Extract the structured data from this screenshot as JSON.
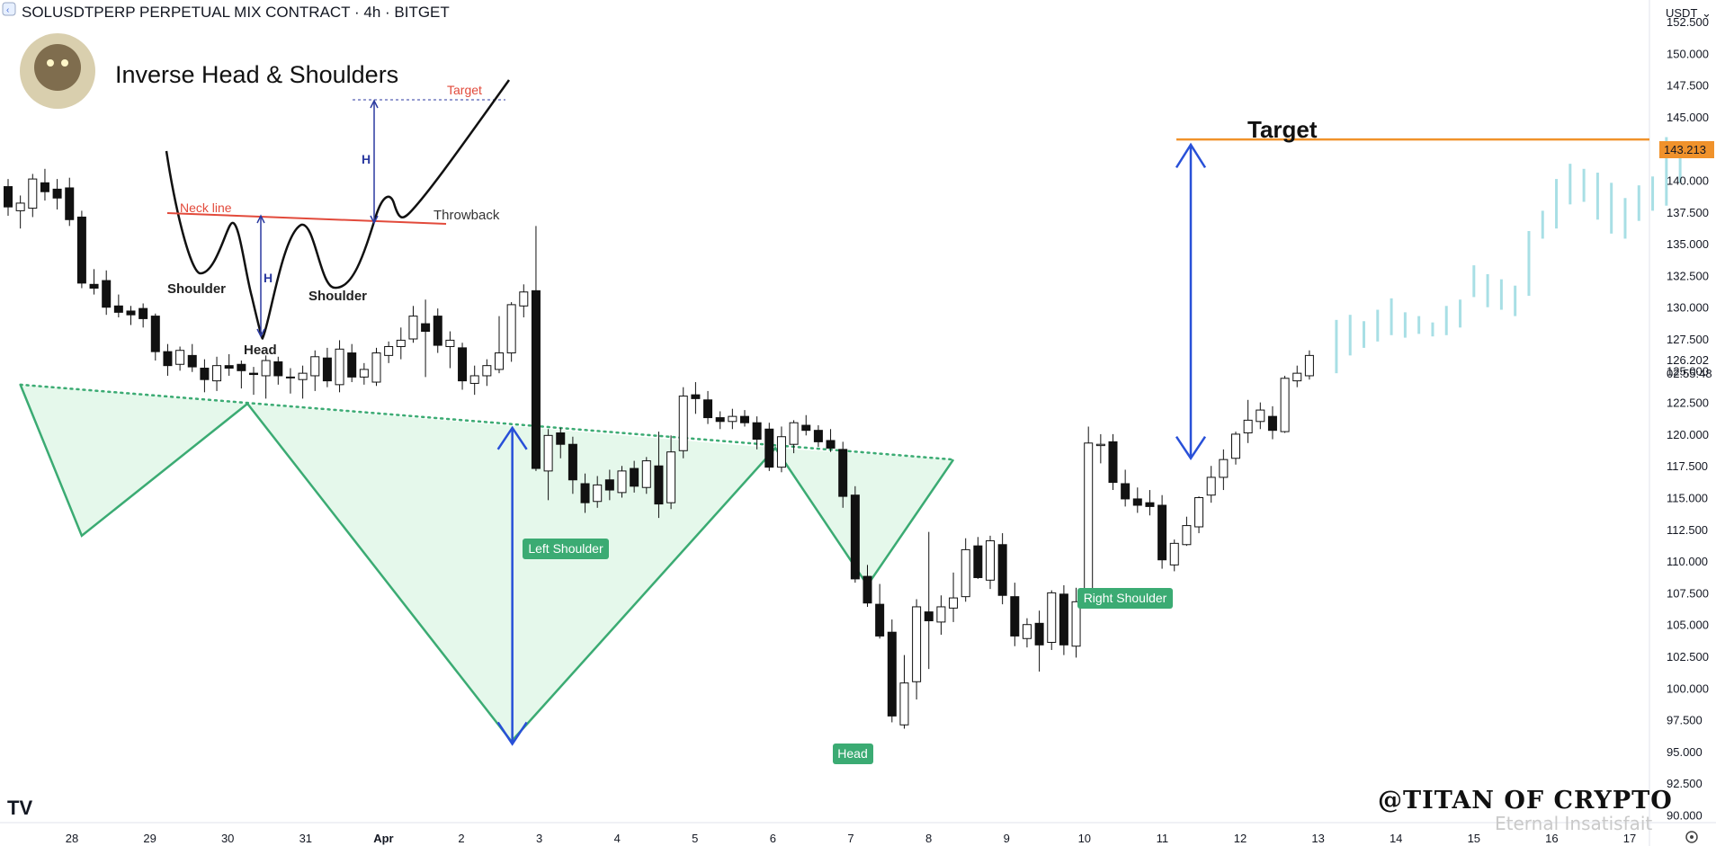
{
  "header": {
    "symbol_line": "SOLUSDTPERP PERPETUAL MIX CONTRACT · 4h · BITGET",
    "currency": "USDT"
  },
  "schematic": {
    "title": "Inverse Head & Shoulders",
    "neck_line": "Neck line",
    "throwback": "Throwback",
    "target": "Target",
    "h1": "H",
    "h2": "H",
    "shoulder_left": "Shoulder",
    "shoulder_right": "Shoulder",
    "head": "Head"
  },
  "annotations": {
    "target_title": "Target",
    "left_shoulder": "Left Shoulder",
    "head": "Head",
    "right_shoulder": "Right Shoulder",
    "watermark": "@TITAN OF CRYPTO",
    "watermark2": "Eternal Insatisfait"
  },
  "price_labels": {
    "target_price": "143.213",
    "last_price": "126.202",
    "countdown": "02:55:48"
  },
  "colors": {
    "bull_fill": "#ffffff",
    "bear_fill": "#111111",
    "candle_stroke": "#111111",
    "pattern_green": "#3bab73",
    "pattern_fill": "#dcf6e4",
    "target_orange": "#f0922b",
    "arrow_blue": "#2850d8",
    "projection": "#a8dfe5",
    "neck_red": "#e24a3b"
  },
  "chart_data": {
    "type": "candlestick",
    "timeframe": "4h",
    "x_ticks": [
      "28",
      "29",
      "30",
      "31",
      "Apr",
      "2",
      "3",
      "4",
      "5",
      "6",
      "7",
      "8",
      "9",
      "10",
      "11",
      "12",
      "13",
      "14",
      "15",
      "16",
      "17"
    ],
    "y_ticks": [
      "152.500",
      "150.000",
      "147.500",
      "145.000",
      "142.500",
      "140.000",
      "137.500",
      "135.000",
      "132.500",
      "130.000",
      "127.500",
      "125.000",
      "122.500",
      "120.000",
      "117.500",
      "115.000",
      "112.500",
      "110.000",
      "107.500",
      "105.000",
      "102.500",
      "100.000",
      "97.500",
      "95.000",
      "92.500",
      "90.000"
    ],
    "ylim": [
      89.4,
      154.2
    ],
    "target_price": 143.213,
    "last_price": 126.202,
    "candles": [
      {
        "o": 139.5,
        "h": 140.1,
        "l": 137.2,
        "c": 137.9
      },
      {
        "o": 137.6,
        "h": 138.8,
        "l": 136.2,
        "c": 138.2
      },
      {
        "o": 137.8,
        "h": 140.5,
        "l": 137.1,
        "c": 140.1
      },
      {
        "o": 139.8,
        "h": 140.9,
        "l": 138.4,
        "c": 139.1
      },
      {
        "o": 139.3,
        "h": 140.1,
        "l": 137.7,
        "c": 138.6
      },
      {
        "o": 139.4,
        "h": 140.2,
        "l": 136.4,
        "c": 136.9
      },
      {
        "o": 137.1,
        "h": 137.6,
        "l": 131.5,
        "c": 131.9
      },
      {
        "o": 131.8,
        "h": 133.0,
        "l": 131.0,
        "c": 131.5
      },
      {
        "o": 132.1,
        "h": 132.9,
        "l": 129.4,
        "c": 130.0
      },
      {
        "o": 130.1,
        "h": 131.0,
        "l": 129.2,
        "c": 129.6
      },
      {
        "o": 129.7,
        "h": 130.1,
        "l": 128.6,
        "c": 129.4
      },
      {
        "o": 129.9,
        "h": 130.3,
        "l": 128.4,
        "c": 129.1
      },
      {
        "o": 129.3,
        "h": 129.5,
        "l": 125.8,
        "c": 126.5
      },
      {
        "o": 126.5,
        "h": 127.1,
        "l": 124.6,
        "c": 125.4
      },
      {
        "o": 125.5,
        "h": 126.9,
        "l": 125.0,
        "c": 126.6
      },
      {
        "o": 126.2,
        "h": 127.1,
        "l": 124.9,
        "c": 125.3
      },
      {
        "o": 125.2,
        "h": 125.9,
        "l": 123.3,
        "c": 124.3
      },
      {
        "o": 124.2,
        "h": 126.1,
        "l": 123.4,
        "c": 125.4
      },
      {
        "o": 125.4,
        "h": 126.3,
        "l": 124.6,
        "c": 125.2
      },
      {
        "o": 125.5,
        "h": 125.8,
        "l": 123.6,
        "c": 125.0
      },
      {
        "o": 124.8,
        "h": 125.3,
        "l": 123.1,
        "c": 124.7
      },
      {
        "o": 124.6,
        "h": 126.2,
        "l": 122.8,
        "c": 125.8
      },
      {
        "o": 125.7,
        "h": 126.1,
        "l": 123.9,
        "c": 124.6
      },
      {
        "o": 124.5,
        "h": 125.2,
        "l": 123.2,
        "c": 124.5
      },
      {
        "o": 124.3,
        "h": 125.4,
        "l": 122.8,
        "c": 124.8
      },
      {
        "o": 124.6,
        "h": 126.6,
        "l": 123.4,
        "c": 126.1
      },
      {
        "o": 126.0,
        "h": 126.8,
        "l": 123.7,
        "c": 124.2
      },
      {
        "o": 123.9,
        "h": 127.4,
        "l": 123.3,
        "c": 126.7
      },
      {
        "o": 126.4,
        "h": 127.1,
        "l": 124.1,
        "c": 124.5
      },
      {
        "o": 124.5,
        "h": 125.6,
        "l": 123.9,
        "c": 125.1
      },
      {
        "o": 124.1,
        "h": 126.8,
        "l": 123.8,
        "c": 126.4
      },
      {
        "o": 126.2,
        "h": 127.3,
        "l": 125.6,
        "c": 126.9
      },
      {
        "o": 126.9,
        "h": 128.4,
        "l": 125.9,
        "c": 127.4
      },
      {
        "o": 127.5,
        "h": 130.1,
        "l": 127.2,
        "c": 129.3
      },
      {
        "o": 128.7,
        "h": 130.6,
        "l": 124.5,
        "c": 128.1
      },
      {
        "o": 129.3,
        "h": 129.9,
        "l": 126.4,
        "c": 127.0
      },
      {
        "o": 126.9,
        "h": 128.1,
        "l": 125.2,
        "c": 127.4
      },
      {
        "o": 126.8,
        "h": 127.2,
        "l": 123.5,
        "c": 124.2
      },
      {
        "o": 124.0,
        "h": 125.4,
        "l": 123.1,
        "c": 124.6
      },
      {
        "o": 124.6,
        "h": 125.9,
        "l": 123.8,
        "c": 125.4
      },
      {
        "o": 125.1,
        "h": 129.3,
        "l": 124.8,
        "c": 126.4
      },
      {
        "o": 126.4,
        "h": 130.4,
        "l": 125.7,
        "c": 130.2
      },
      {
        "o": 130.1,
        "h": 131.8,
        "l": 129.2,
        "c": 131.2
      },
      {
        "o": 131.3,
        "h": 136.4,
        "l": 117.1,
        "c": 117.3
      },
      {
        "o": 117.1,
        "h": 120.4,
        "l": 114.8,
        "c": 119.9
      },
      {
        "o": 120.1,
        "h": 120.5,
        "l": 118.1,
        "c": 119.2
      },
      {
        "o": 119.2,
        "h": 119.8,
        "l": 115.3,
        "c": 116.4
      },
      {
        "o": 116.1,
        "h": 116.9,
        "l": 113.8,
        "c": 114.6
      },
      {
        "o": 114.7,
        "h": 116.7,
        "l": 114.2,
        "c": 116.0
      },
      {
        "o": 116.4,
        "h": 117.2,
        "l": 114.8,
        "c": 115.6
      },
      {
        "o": 115.4,
        "h": 117.5,
        "l": 115.0,
        "c": 117.1
      },
      {
        "o": 117.3,
        "h": 117.9,
        "l": 115.4,
        "c": 115.9
      },
      {
        "o": 115.8,
        "h": 118.2,
        "l": 115.3,
        "c": 117.9
      },
      {
        "o": 117.5,
        "h": 120.2,
        "l": 113.4,
        "c": 114.5
      },
      {
        "o": 114.6,
        "h": 119.9,
        "l": 114.1,
        "c": 118.6
      },
      {
        "o": 118.7,
        "h": 123.7,
        "l": 118.1,
        "c": 123.0
      },
      {
        "o": 123.1,
        "h": 124.1,
        "l": 121.6,
        "c": 122.8
      },
      {
        "o": 122.7,
        "h": 123.4,
        "l": 120.8,
        "c": 121.3
      },
      {
        "o": 121.3,
        "h": 121.8,
        "l": 120.4,
        "c": 121.0
      },
      {
        "o": 121.0,
        "h": 122.0,
        "l": 120.4,
        "c": 121.4
      },
      {
        "o": 121.4,
        "h": 121.9,
        "l": 120.6,
        "c": 120.9
      },
      {
        "o": 120.9,
        "h": 121.4,
        "l": 118.8,
        "c": 119.6
      },
      {
        "o": 120.4,
        "h": 120.9,
        "l": 117.1,
        "c": 117.4
      },
      {
        "o": 117.4,
        "h": 120.6,
        "l": 117.0,
        "c": 119.8
      },
      {
        "o": 119.2,
        "h": 121.1,
        "l": 118.5,
        "c": 120.9
      },
      {
        "o": 120.7,
        "h": 121.5,
        "l": 119.9,
        "c": 120.3
      },
      {
        "o": 120.3,
        "h": 120.7,
        "l": 119.0,
        "c": 119.4
      },
      {
        "o": 119.5,
        "h": 120.4,
        "l": 118.6,
        "c": 118.9
      },
      {
        "o": 118.8,
        "h": 119.4,
        "l": 114.2,
        "c": 115.1
      },
      {
        "o": 115.2,
        "h": 115.9,
        "l": 108.3,
        "c": 108.6
      },
      {
        "o": 108.8,
        "h": 109.7,
        "l": 106.4,
        "c": 106.7
      },
      {
        "o": 106.6,
        "h": 108.2,
        "l": 103.9,
        "c": 104.1
      },
      {
        "o": 104.4,
        "h": 105.4,
        "l": 97.3,
        "c": 97.8
      },
      {
        "o": 97.1,
        "h": 102.6,
        "l": 96.8,
        "c": 100.4
      },
      {
        "o": 100.5,
        "h": 107.0,
        "l": 99.1,
        "c": 106.4
      },
      {
        "o": 106.0,
        "h": 112.3,
        "l": 101.5,
        "c": 105.3
      },
      {
        "o": 105.2,
        "h": 107.3,
        "l": 104.2,
        "c": 106.4
      },
      {
        "o": 106.3,
        "h": 109.1,
        "l": 105.2,
        "c": 107.1
      },
      {
        "o": 107.2,
        "h": 111.8,
        "l": 106.8,
        "c": 110.9
      },
      {
        "o": 111.2,
        "h": 111.9,
        "l": 108.6,
        "c": 108.7
      },
      {
        "o": 108.5,
        "h": 112.0,
        "l": 107.8,
        "c": 111.6
      },
      {
        "o": 111.3,
        "h": 112.2,
        "l": 106.6,
        "c": 107.3
      },
      {
        "o": 107.2,
        "h": 108.3,
        "l": 103.3,
        "c": 104.1
      },
      {
        "o": 103.9,
        "h": 105.5,
        "l": 103.2,
        "c": 105.0
      },
      {
        "o": 105.1,
        "h": 106.1,
        "l": 101.3,
        "c": 103.4
      },
      {
        "o": 103.6,
        "h": 107.7,
        "l": 103.0,
        "c": 107.5
      },
      {
        "o": 107.4,
        "h": 108.1,
        "l": 102.6,
        "c": 103.4
      },
      {
        "o": 103.3,
        "h": 107.9,
        "l": 102.4,
        "c": 106.8
      },
      {
        "o": 106.8,
        "h": 120.6,
        "l": 106.5,
        "c": 119.3
      },
      {
        "o": 119.1,
        "h": 120.0,
        "l": 117.7,
        "c": 119.2
      },
      {
        "o": 119.4,
        "h": 120.0,
        "l": 115.6,
        "c": 116.2
      },
      {
        "o": 116.1,
        "h": 117.2,
        "l": 114.3,
        "c": 114.9
      },
      {
        "o": 114.9,
        "h": 115.8,
        "l": 113.8,
        "c": 114.4
      },
      {
        "o": 114.6,
        "h": 115.6,
        "l": 113.6,
        "c": 114.3
      },
      {
        "o": 114.4,
        "h": 115.2,
        "l": 109.4,
        "c": 110.1
      },
      {
        "o": 109.7,
        "h": 111.7,
        "l": 109.2,
        "c": 111.4
      },
      {
        "o": 111.3,
        "h": 113.5,
        "l": 111.2,
        "c": 112.8
      },
      {
        "o": 112.7,
        "h": 115.1,
        "l": 112.2,
        "c": 115.0
      },
      {
        "o": 115.2,
        "h": 117.5,
        "l": 114.6,
        "c": 116.6
      },
      {
        "o": 116.6,
        "h": 118.8,
        "l": 115.6,
        "c": 118.0
      },
      {
        "o": 118.1,
        "h": 120.2,
        "l": 117.6,
        "c": 120.0
      },
      {
        "o": 120.1,
        "h": 122.7,
        "l": 119.3,
        "c": 121.1
      },
      {
        "o": 121.0,
        "h": 122.5,
        "l": 120.4,
        "c": 121.9
      },
      {
        "o": 121.4,
        "h": 122.2,
        "l": 119.6,
        "c": 120.3
      },
      {
        "o": 120.2,
        "h": 124.6,
        "l": 120.1,
        "c": 124.4
      },
      {
        "o": 124.2,
        "h": 125.4,
        "l": 123.7,
        "c": 124.8
      },
      {
        "o": 124.6,
        "h": 126.6,
        "l": 124.3,
        "c": 126.2
      }
    ],
    "projection": [
      {
        "h": 129.0,
        "l": 124.8
      },
      {
        "h": 129.4,
        "l": 126.2
      },
      {
        "h": 128.9,
        "l": 126.8
      },
      {
        "h": 129.8,
        "l": 127.3
      },
      {
        "h": 130.7,
        "l": 127.8
      },
      {
        "h": 129.6,
        "l": 127.6
      },
      {
        "h": 129.3,
        "l": 127.9
      },
      {
        "h": 128.8,
        "l": 127.7
      },
      {
        "h": 130.1,
        "l": 127.8
      },
      {
        "h": 130.6,
        "l": 128.4
      },
      {
        "h": 133.3,
        "l": 130.8
      },
      {
        "h": 132.6,
        "l": 130.0
      },
      {
        "h": 132.2,
        "l": 129.8
      },
      {
        "h": 131.7,
        "l": 129.3
      },
      {
        "h": 136.0,
        "l": 130.9
      },
      {
        "h": 137.6,
        "l": 135.4
      },
      {
        "h": 140.1,
        "l": 136.2
      },
      {
        "h": 141.3,
        "l": 138.1
      },
      {
        "h": 140.9,
        "l": 138.3
      },
      {
        "h": 140.6,
        "l": 136.9
      },
      {
        "h": 139.8,
        "l": 135.8
      },
      {
        "h": 138.6,
        "l": 135.4
      },
      {
        "h": 139.6,
        "l": 136.8
      },
      {
        "h": 140.3,
        "l": 137.6
      },
      {
        "h": 143.4,
        "l": 138.0
      },
      {
        "h": 142.0,
        "l": 139.8
      }
    ],
    "pattern_points": {
      "neck_start": [
        1.0,
        123.9
      ],
      "ls_low": [
        6.0,
        112.0
      ],
      "neck_mid": [
        19.5,
        122.4
      ],
      "head_low": [
        41.0,
        95.8
      ],
      "neck_right": [
        62.5,
        118.9
      ],
      "rs_low": [
        70.0,
        108.1
      ],
      "neck_end": [
        77.0,
        118.0
      ]
    }
  }
}
